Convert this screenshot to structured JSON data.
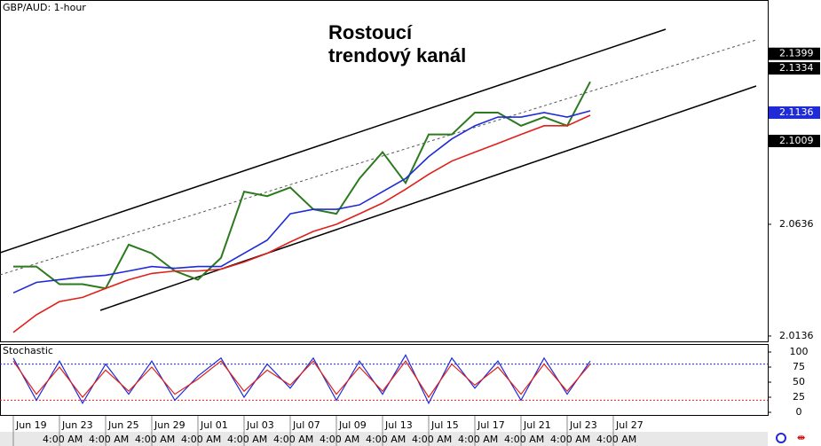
{
  "chart_data": {
    "type": "line",
    "header": "GBP/AUD: 1-hour",
    "title_lines": [
      "Rostoucí",
      "trendový kanál"
    ],
    "categories": [
      "Jun 19",
      null,
      "Jun 23",
      null,
      "Jun 25",
      null,
      "Jun 29",
      null,
      "Jul 01",
      null,
      "Jul 03",
      null,
      "Jul 07",
      null,
      "Jul 09",
      null,
      "Jul 13",
      null,
      "Jul 15",
      null,
      "Jul 17",
      null,
      "Jul 21",
      null,
      "Jul 23",
      null,
      "Jul 27"
    ],
    "time_labels": [
      "4:00 AM",
      "4:00 AM",
      "4:00 AM",
      "4:00 AM",
      "4:00 AM",
      "4:00 AM",
      "4:00 AM",
      "4:00 AM",
      "4:00 AM",
      "4:00 AM",
      "4:00 AM",
      "4:00 AM",
      "4:00 AM"
    ],
    "series": [
      {
        "color": "#2d7a1e",
        "values": [
          2.0447,
          2.0447,
          2.0368,
          2.0368,
          2.0349,
          2.0545,
          2.0506,
          2.0427,
          2.0388,
          2.0486,
          2.0782,
          2.0762,
          2.0801,
          2.0703,
          2.0683,
          2.0841,
          2.0959,
          2.0821,
          2.1038,
          2.1038,
          2.1136,
          2.1136,
          2.1077,
          2.1116,
          2.1077,
          2.1274,
          null
        ]
      },
      {
        "color": "#1f2bd6",
        "values": [
          2.0329,
          2.0376,
          2.0388,
          2.04,
          2.0408,
          2.0427,
          2.0447,
          2.0439,
          2.0447,
          2.0447,
          2.0506,
          2.0565,
          2.0683,
          2.0703,
          2.0703,
          2.0723,
          2.0782,
          2.0841,
          2.0939,
          2.1018,
          2.1077,
          2.1116,
          2.1116,
          2.1136,
          2.1116,
          2.1144,
          null
        ]
      },
      {
        "color": "#e0201a",
        "values": [
          2.0152,
          2.0231,
          2.029,
          2.0309,
          2.0349,
          2.0388,
          2.0416,
          2.0427,
          2.0427,
          2.0435,
          2.0467,
          2.0506,
          2.0557,
          2.0604,
          2.0636,
          2.0683,
          2.0731,
          2.0793,
          2.086,
          2.0919,
          2.0959,
          2.0998,
          2.1038,
          2.1077,
          2.1077,
          2.1124,
          null
        ]
      }
    ],
    "ylim": [
      2.0112,
      2.164
    ],
    "yticks": [
      2.0136,
      2.0636,
      2.1136
    ],
    "price_labels": [
      {
        "value": 2.1399,
        "color": "#000000"
      },
      {
        "value": 2.1334,
        "color": "#000000"
      },
      {
        "value": 2.1136,
        "color": "#1f2bd6"
      },
      {
        "value": 2.1009,
        "color": "#000000"
      }
    ],
    "stochastic": {
      "title": "Stochastic",
      "series": [
        {
          "color": "#1f2bd6",
          "values": [
            90,
            20,
            85,
            15,
            80,
            30,
            85,
            20,
            60,
            90,
            25,
            80,
            40,
            90,
            20,
            85,
            30,
            95,
            15,
            90,
            40,
            85,
            20,
            90,
            30,
            85,
            null
          ]
        },
        {
          "color": "#e0201a",
          "values": [
            85,
            30,
            75,
            25,
            70,
            35,
            75,
            30,
            55,
            85,
            35,
            70,
            45,
            85,
            30,
            75,
            35,
            85,
            25,
            80,
            45,
            75,
            30,
            80,
            35,
            80,
            null
          ]
        }
      ],
      "ylim": [
        0,
        100
      ],
      "yticks": [
        0,
        25,
        50,
        75,
        100
      ],
      "levels": [
        {
          "value": 80,
          "color": "#1f2bd6"
        },
        {
          "value": 20,
          "color": "#e0201a"
        }
      ]
    }
  }
}
